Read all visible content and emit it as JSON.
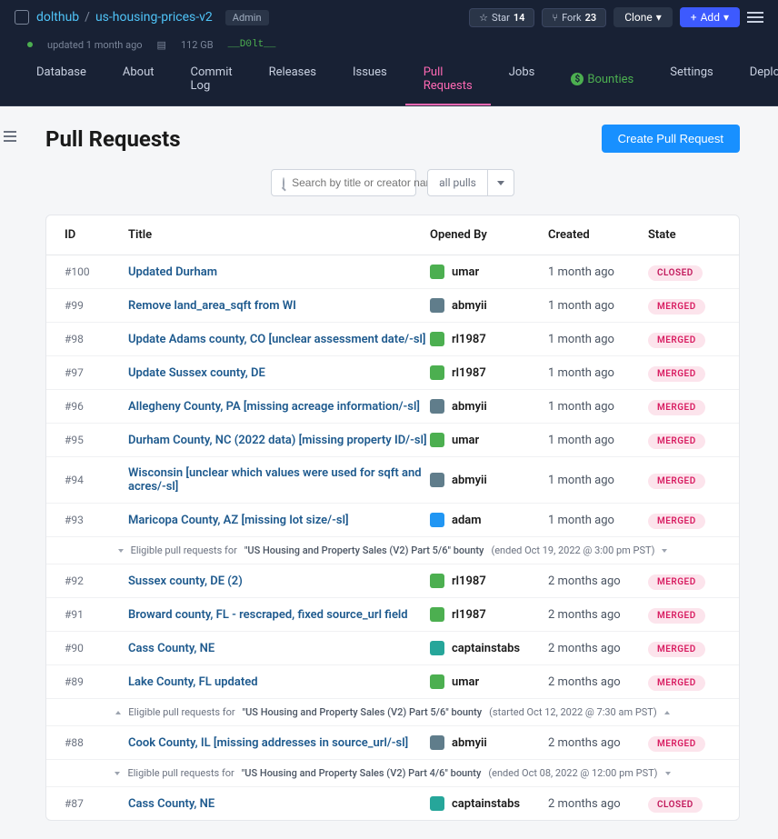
{
  "breadcrumb": {
    "owner": "dolthub",
    "repo": "us-housing-prices-v2",
    "badge": "Admin"
  },
  "repo_meta": {
    "updated": "updated 1 month ago",
    "size": "112 GB",
    "dolt": "__D0lt__"
  },
  "topbar": {
    "star_label": "Star",
    "star_count": "14",
    "fork_label": "Fork",
    "fork_count": "23",
    "clone_label": "Clone",
    "add_label": "Add"
  },
  "nav": {
    "database": "Database",
    "about": "About",
    "commit_log": "Commit Log",
    "releases": "Releases",
    "issues": "Issues",
    "pull_requests": "Pull Requests",
    "jobs": "Jobs",
    "bounties": "Bounties",
    "settings": "Settings",
    "deploy": "Deploy"
  },
  "page": {
    "title": "Pull Requests",
    "create_btn": "Create Pull Request"
  },
  "filters": {
    "search_placeholder": "Search by title or creator name",
    "dropdown": "all pulls"
  },
  "columns": {
    "id": "ID",
    "title": "Title",
    "opened_by": "Opened By",
    "created": "Created",
    "state": "State"
  },
  "avatar_colors": {
    "umar": "#4caf50",
    "abmyii": "#607d8b",
    "rl1987": "#4caf50",
    "adam": "#2196f3",
    "captainstabs": "#26a69a"
  },
  "rows": [
    {
      "id": "#100",
      "title": "Updated Durham",
      "user": "umar",
      "created": "1 month ago",
      "state": "CLOSED"
    },
    {
      "id": "#99",
      "title": "Remove land_area_sqft from WI",
      "user": "abmyii",
      "created": "1 month ago",
      "state": "MERGED"
    },
    {
      "id": "#98",
      "title": "Update Adams county, CO [unclear assessment date/-sl]",
      "user": "rl1987",
      "created": "1 month ago",
      "state": "MERGED"
    },
    {
      "id": "#97",
      "title": "Update Sussex county, DE",
      "user": "rl1987",
      "created": "1 month ago",
      "state": "MERGED"
    },
    {
      "id": "#96",
      "title": "Allegheny County, PA [missing acreage information/-sl]",
      "user": "abmyii",
      "created": "1 month ago",
      "state": "MERGED"
    },
    {
      "id": "#95",
      "title": "Durham County, NC (2022 data) [missing property ID/-sl]",
      "user": "umar",
      "created": "1 month ago",
      "state": "MERGED"
    },
    {
      "id": "#94",
      "title": "Wisconsin [unclear which values were used for sqft and acres/-sl]",
      "user": "abmyii",
      "created": "1 month ago",
      "state": "MERGED"
    },
    {
      "id": "#93",
      "title": "Maricopa County, AZ [missing lot size/-sl]",
      "user": "adam",
      "created": "1 month ago",
      "state": "MERGED"
    },
    {
      "bounty": true,
      "chevron": "down",
      "prefix": "Eligible pull requests for",
      "name": "\"US Housing and Property Sales (V2) Part 5/6\" bounty",
      "suffix": "(ended Oct 19, 2022 @ 3:00 pm PST)"
    },
    {
      "id": "#92",
      "title": "Sussex county, DE (2)",
      "user": "rl1987",
      "created": "2 months ago",
      "state": "MERGED"
    },
    {
      "id": "#91",
      "title": "Broward county, FL - rescraped, fixed source_url field",
      "user": "rl1987",
      "created": "2 months ago",
      "state": "MERGED"
    },
    {
      "id": "#90",
      "title": "Cass County, NE",
      "user": "captainstabs",
      "created": "2 months ago",
      "state": "MERGED"
    },
    {
      "id": "#89",
      "title": "Lake County, FL updated",
      "user": "umar",
      "created": "2 months ago",
      "state": "MERGED"
    },
    {
      "bounty": true,
      "chevron": "up",
      "prefix": "Eligible pull requests for",
      "name": "\"US Housing and Property Sales (V2) Part 5/6\" bounty",
      "suffix": "(started Oct 12, 2022 @ 7:30 am PST)"
    },
    {
      "id": "#88",
      "title": "Cook County, IL [missing addresses in source_url/-sl]",
      "user": "abmyii",
      "created": "2 months ago",
      "state": "MERGED"
    },
    {
      "bounty": true,
      "chevron": "down",
      "prefix": "Eligible pull requests for",
      "name": "\"US Housing and Property Sales (V2) Part 4/6\" bounty",
      "suffix": "(ended Oct 08, 2022 @ 12:00 pm PST)"
    },
    {
      "id": "#87",
      "title": "Cass County, NE",
      "user": "captainstabs",
      "created": "2 months ago",
      "state": "CLOSED"
    }
  ]
}
